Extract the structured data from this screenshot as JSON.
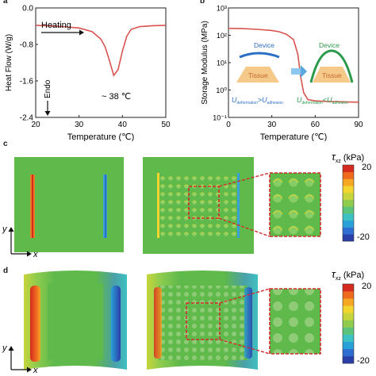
{
  "figure": {
    "panels": {
      "a": "a",
      "b": "b",
      "c": "c",
      "d": "d"
    }
  },
  "chart_data": [
    {
      "type": "line",
      "panel": "a",
      "xlabel": "Temperature (℃)",
      "ylabel": "Heat Flow (W/g)",
      "xlim": [
        20,
        50
      ],
      "ylim": [
        -2.4,
        0.0
      ],
      "x_ticks": [
        "20",
        "30",
        "40",
        "50"
      ],
      "y_ticks": [
        "0.0",
        "-0.8",
        "-1.6",
        "-2.4"
      ],
      "annotations": {
        "heating": "Heating",
        "endo": "Endo",
        "peak": "~ 38  ℃"
      },
      "x": [
        20,
        25,
        30,
        33,
        35,
        36,
        37,
        38,
        39,
        40,
        41,
        42,
        44,
        47,
        50
      ],
      "y": [
        -0.38,
        -0.4,
        -0.44,
        -0.52,
        -0.68,
        -0.85,
        -1.15,
        -1.48,
        -1.35,
        -0.95,
        -0.62,
        -0.47,
        -0.41,
        -0.39,
        -0.38
      ],
      "grid": false,
      "color": "#d9534f"
    },
    {
      "type": "line",
      "panel": "b",
      "xlabel": "Temperature (℃)",
      "ylabel": "Storage Modulus (MPa)",
      "xlim": [
        0,
        90
      ],
      "ylim_log": [
        -1,
        3
      ],
      "x_ticks": [
        "0",
        "30",
        "60",
        "90"
      ],
      "y_ticks": [
        "10⁻¹",
        "10⁰",
        "10¹",
        "10²",
        "10³"
      ],
      "x": [
        0,
        10,
        20,
        30,
        35,
        40,
        45,
        48,
        50,
        52,
        55,
        60,
        70,
        80,
        90
      ],
      "y": [
        180,
        175,
        165,
        150,
        135,
        110,
        70,
        20,
        3,
        0.8,
        0.45,
        0.4,
        0.38,
        0.37,
        0.36
      ],
      "annotations": {
        "device_left": "Device",
        "tissue_left": "Tissue",
        "device_right": "Device",
        "tissue_right": "Tissue",
        "u_def_left": "U",
        "u_def_left_sub": "deformation",
        "op_left": ">",
        "u_adh_left": "U",
        "u_adh_left_sub": "adhesion",
        "u_def_right": "U",
        "u_def_right_sub": "deformation",
        "op_right": "<",
        "u_adh_right": "U",
        "u_adh_right_sub": "adhesion"
      },
      "grid": false,
      "color": "#d9534f"
    }
  ],
  "panel_c": {
    "colorbar_label": "τ",
    "colorbar_sub": "xz",
    "colorbar_unit": " (kPa)",
    "colorbar_max": "20",
    "colorbar_min": "-20",
    "axis_y": "y",
    "axis_x": "x"
  },
  "panel_d": {
    "colorbar_label": "τ",
    "colorbar_sub": "xz",
    "colorbar_unit": " (kPa)",
    "colorbar_max": "20",
    "colorbar_min": "-20",
    "axis_y": "y",
    "axis_x": "x"
  },
  "colors": {
    "field_green": "#5fb94b",
    "field_dark_green": "#4aa33f",
    "hot": "#e0382a",
    "cold": "#2b6fc4",
    "device_blue": "#2b6fc4",
    "device_green": "#2a9a4a",
    "tissue": "#f4c98a",
    "zoom_dash": "#d22b2b"
  },
  "colorbar_stops": [
    "#2a3ea8",
    "#2f6dd3",
    "#2aa0d8",
    "#3ec1c3",
    "#5cc47a",
    "#8fcc4e",
    "#c7d43c",
    "#f2d52f",
    "#f5a623",
    "#ee6a1f",
    "#d52a1e"
  ]
}
